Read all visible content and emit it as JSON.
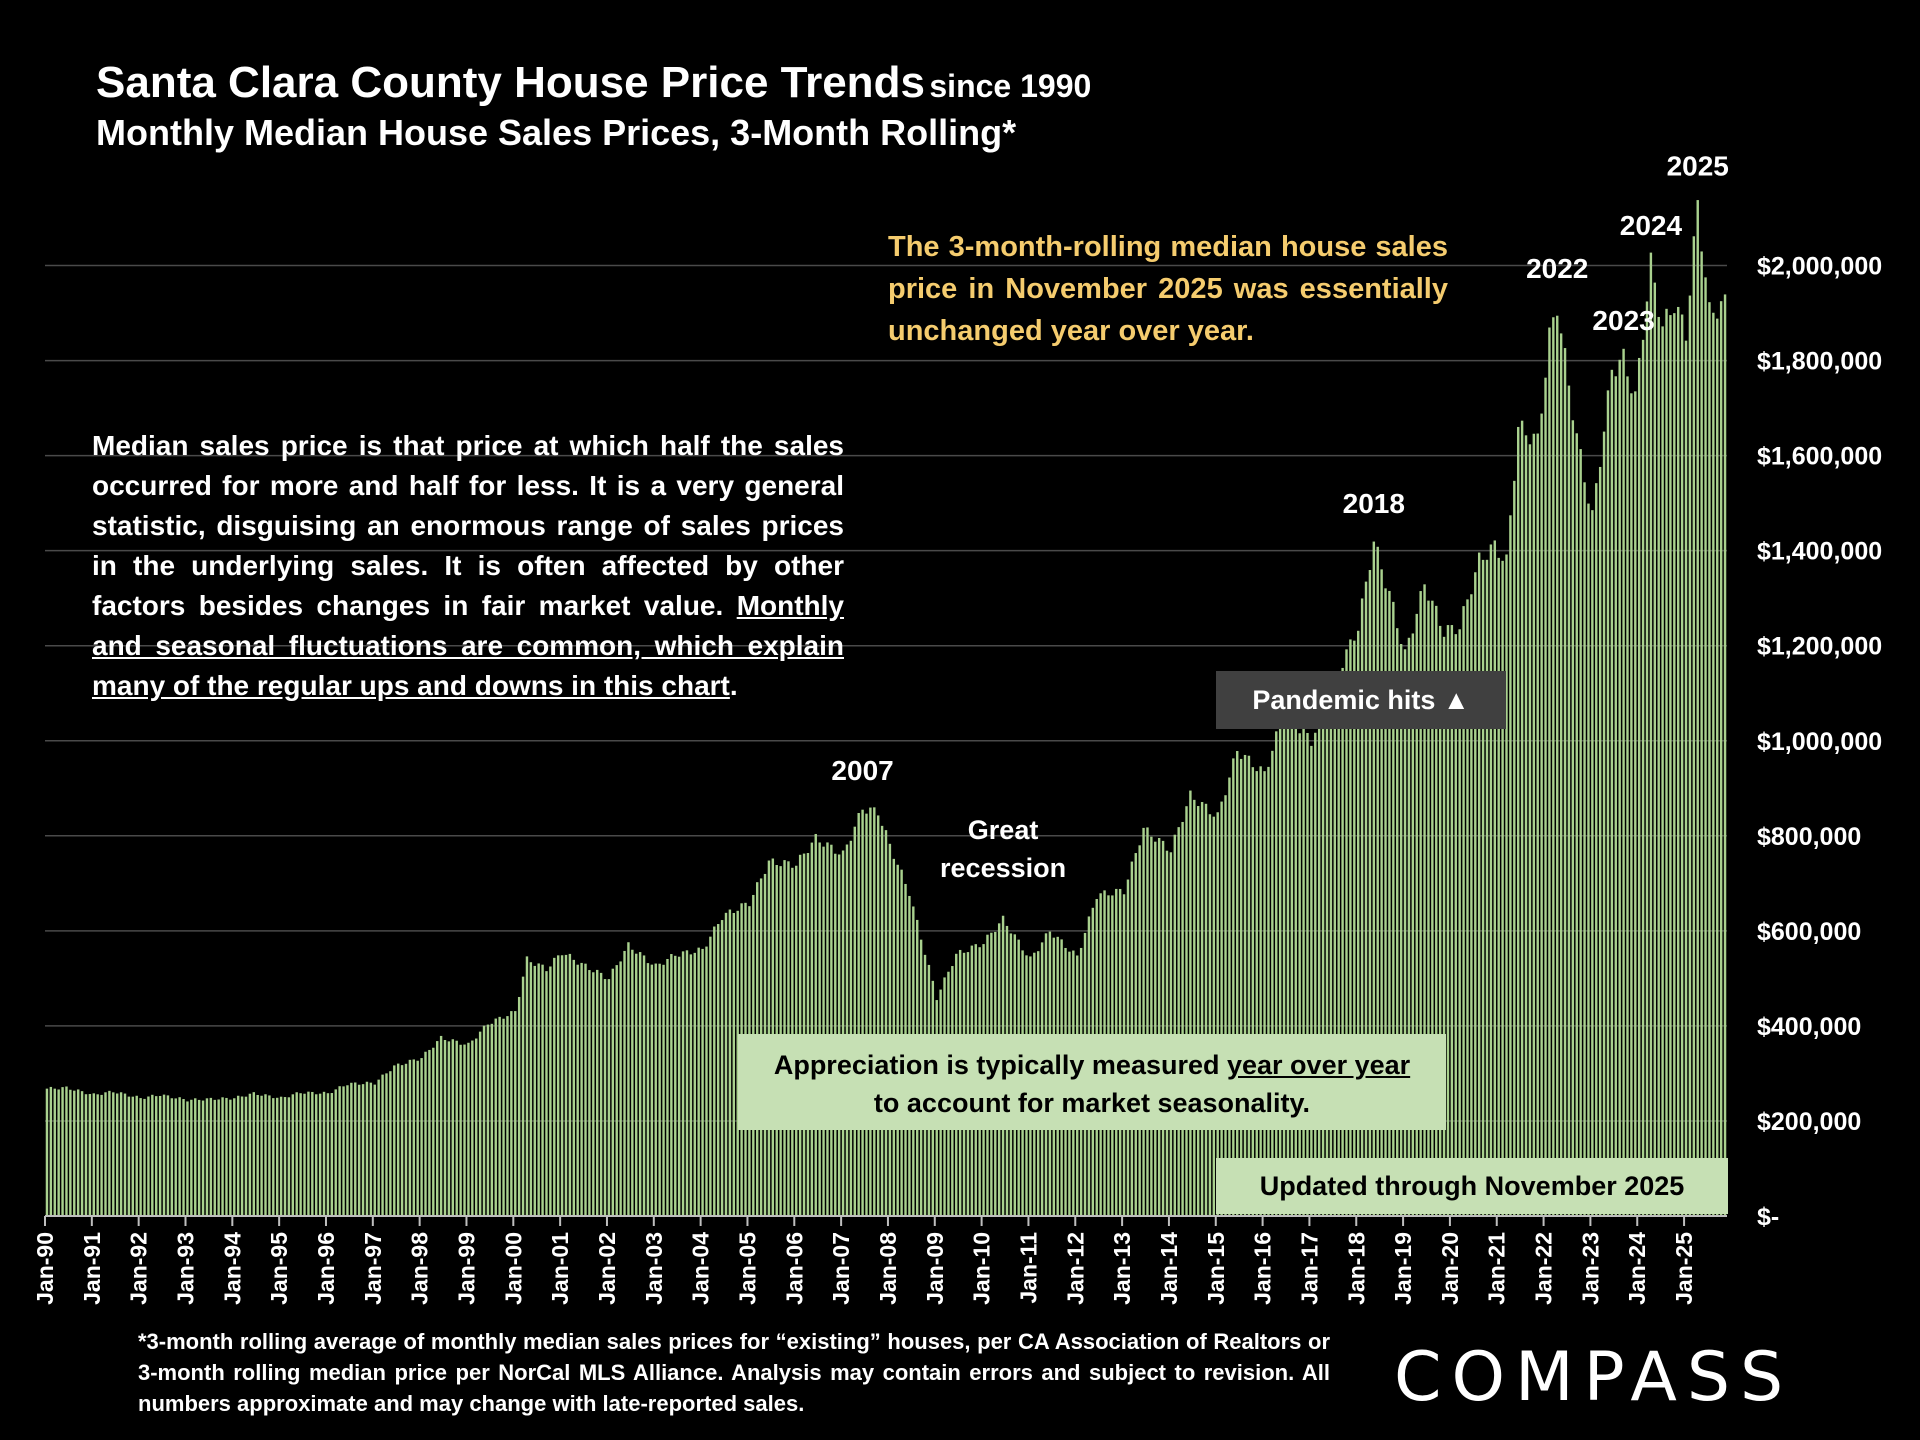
{
  "header": {
    "title_main": "Santa Clara County House Price Trends",
    "title_since": "since 1990",
    "subtitle": "Monthly Median House Sales Prices, 3-Month Rolling*"
  },
  "notes": {
    "yoy_note": "The 3-month-rolling median house sales price in November 2025 was essentially unchanged year over year.",
    "median_plain": "Median sales price is that price at which half the sales occurred for more and half for less. It is a very general statistic, disguising an enormous range of sales prices in the underlying sales. It is often affected by other factors besides changes in fair market value. ",
    "median_underlined": "Monthly and seasonal fluctuations are common, which explain many of the regular ups and downs in this chart",
    "median_end": ".",
    "appreciation_plain": "Appreciation is typically measured ",
    "appreciation_underlined": "year over year",
    "appreciation_end": "to account for market seasonality.",
    "updated": "Updated through November 2025",
    "pandemic": "Pandemic hits ▲",
    "footnote": "*3-month rolling average of monthly median sales prices for “existing” houses, per CA Association of Realtors or 3-month rolling median price per NorCal MLS Alliance. Analysis may contain errors and subject to revision. All numbers approximate and may change with late-reported sales.",
    "logo": "COMPASS"
  },
  "chart_data": {
    "type": "bar",
    "title": "Santa Clara County House Price Trends since 1990",
    "subtitle": "Monthly Median House Sales Prices, 3-Month Rolling*",
    "x_start": "Jan-90",
    "x_end": "Nov-25",
    "frequency": "monthly",
    "ylim": [
      0,
      2100000
    ],
    "y_ticks": [
      0,
      200000,
      400000,
      600000,
      800000,
      1000000,
      1200000,
      1400000,
      1600000,
      1800000,
      2000000
    ],
    "y_tick_labels": [
      "$-",
      "$200,000",
      "$400,000",
      "$600,000",
      "$800,000",
      "$1,000,000",
      "$1,200,000",
      "$1,400,000",
      "$1,600,000",
      "$1,800,000",
      "$2,000,000"
    ],
    "x_tick_labels": [
      "Jan-90",
      "Jan-91",
      "Jan-92",
      "Jan-93",
      "Jan-94",
      "Jan-95",
      "Jan-96",
      "Jan-97",
      "Jan-98",
      "Jan-99",
      "Jan-00",
      "Jan-01",
      "Jan-02",
      "Jan-03",
      "Jan-04",
      "Jan-05",
      "Jan-06",
      "Jan-07",
      "Jan-08",
      "Jan-09",
      "Jan-10",
      "Jan-11",
      "Jan-12",
      "Jan-13",
      "Jan-14",
      "Jan-15",
      "Jan-16",
      "Jan-17",
      "Jan-18",
      "Jan-19",
      "Jan-20",
      "Jan-21",
      "Jan-22",
      "Jan-23",
      "Jan-24",
      "Jan-25"
    ],
    "anchor_values": [
      [
        "1990-01",
        268000
      ],
      [
        "1990-06",
        270000
      ],
      [
        "1991-01",
        255000
      ],
      [
        "1991-06",
        262000
      ],
      [
        "1992-01",
        248000
      ],
      [
        "1992-06",
        255000
      ],
      [
        "1993-01",
        244000
      ],
      [
        "1993-06",
        246000
      ],
      [
        "1994-01",
        248000
      ],
      [
        "1994-06",
        258000
      ],
      [
        "1995-01",
        248000
      ],
      [
        "1995-06",
        260000
      ],
      [
        "1996-01",
        258000
      ],
      [
        "1996-06",
        278000
      ],
      [
        "1997-01",
        280000
      ],
      [
        "1997-06",
        315000
      ],
      [
        "1998-01",
        333000
      ],
      [
        "1998-06",
        375000
      ],
      [
        "1999-01",
        360000
      ],
      [
        "1999-06",
        405000
      ],
      [
        "2000-01",
        430000
      ],
      [
        "2000-04",
        540000
      ],
      [
        "2000-09",
        520000
      ],
      [
        "2001-01",
        555000
      ],
      [
        "2001-06",
        530000
      ],
      [
        "2002-01",
        500000
      ],
      [
        "2002-06",
        570000
      ],
      [
        "2003-01",
        525000
      ],
      [
        "2003-06",
        550000
      ],
      [
        "2004-01",
        560000
      ],
      [
        "2004-06",
        630000
      ],
      [
        "2005-01",
        660000
      ],
      [
        "2005-06",
        745000
      ],
      [
        "2006-01",
        740000
      ],
      [
        "2006-06",
        795000
      ],
      [
        "2007-01",
        760000
      ],
      [
        "2007-06",
        858000
      ],
      [
        "2007-10",
        850000
      ],
      [
        "2008-01",
        780000
      ],
      [
        "2008-06",
        680000
      ],
      [
        "2009-01",
        460000
      ],
      [
        "2009-06",
        550000
      ],
      [
        "2010-01",
        575000
      ],
      [
        "2010-06",
        625000
      ],
      [
        "2011-01",
        540000
      ],
      [
        "2011-06",
        600000
      ],
      [
        "2012-01",
        545000
      ],
      [
        "2012-06",
        675000
      ],
      [
        "2013-01",
        685000
      ],
      [
        "2013-06",
        815000
      ],
      [
        "2014-01",
        770000
      ],
      [
        "2014-06",
        885000
      ],
      [
        "2015-01",
        840000
      ],
      [
        "2015-06",
        980000
      ],
      [
        "2016-01",
        930000
      ],
      [
        "2016-06",
        1060000
      ],
      [
        "2017-01",
        1000000
      ],
      [
        "2017-06",
        1110000
      ],
      [
        "2018-01",
        1240000
      ],
      [
        "2018-05",
        1420000
      ],
      [
        "2018-10",
        1280000
      ],
      [
        "2019-01",
        1180000
      ],
      [
        "2019-06",
        1330000
      ],
      [
        "2019-11",
        1230000
      ],
      [
        "2020-03",
        1240000
      ],
      [
        "2020-08",
        1380000
      ],
      [
        "2020-12",
        1410000
      ],
      [
        "2021-03",
        1375000
      ],
      [
        "2021-06",
        1660000
      ],
      [
        "2021-11",
        1630000
      ],
      [
        "2022-02",
        1850000
      ],
      [
        "2022-04",
        1915000
      ],
      [
        "2022-09",
        1640000
      ],
      [
        "2023-01",
        1470000
      ],
      [
        "2023-06",
        1780000
      ],
      [
        "2023-09",
        1805000
      ],
      [
        "2023-12",
        1720000
      ],
      [
        "2024-04",
        2005000
      ],
      [
        "2024-07",
        1870000
      ],
      [
        "2024-10",
        1920000
      ],
      [
        "2025-01",
        1860000
      ],
      [
        "2025-04",
        2130000
      ],
      [
        "2025-07",
        1900000
      ],
      [
        "2025-11",
        1920000
      ]
    ],
    "annotations": [
      {
        "label": "2007",
        "x": "2007-06",
        "value": 858000
      },
      {
        "label": "Great recession",
        "x": "2010-06",
        "value": 625000
      },
      {
        "label": "2018",
        "x": "2018-05",
        "value": 1420000
      },
      {
        "label": "2022",
        "x": "2022-04",
        "value": 1915000
      },
      {
        "label": "2023",
        "x": "2023-09",
        "value": 1805000
      },
      {
        "label": "2024",
        "x": "2024-04",
        "value": 2005000
      },
      {
        "label": "2025",
        "x": "2025-04",
        "value": 2130000
      }
    ],
    "bar_color": "#a9d18e",
    "grid": true,
    "background": "#000000",
    "text_color": "#ffffff",
    "note_color": "#f5cc6e",
    "box_color": "#c6e0b4"
  }
}
